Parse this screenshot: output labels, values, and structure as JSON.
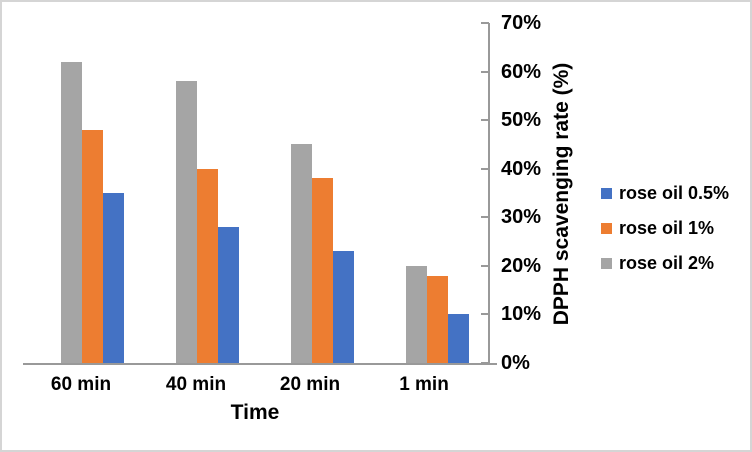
{
  "chart_data": {
    "type": "bar",
    "title": "",
    "xlabel": "Time",
    "ylabel": "DPPH scavenging rate (%)",
    "categories": [
      "60 min",
      "40 min",
      "20 min",
      "1 min"
    ],
    "series": [
      {
        "name": "rose oil 0.5%",
        "color": "#4472c4",
        "values": [
          35,
          28,
          23,
          10
        ]
      },
      {
        "name": "rose oil 1%",
        "color": "#ed7d31",
        "values": [
          48,
          40,
          38,
          18
        ]
      },
      {
        "name": "rose oil 2%",
        "color": "#a5a5a5",
        "values": [
          62,
          58,
          45,
          20
        ]
      }
    ],
    "bar_group_order_left_to_right": [
      "rose oil 2%",
      "rose oil 1%",
      "rose oil 0.5%"
    ],
    "y_axis": {
      "min": 0,
      "max": 70,
      "step": 10,
      "side": "right",
      "tick_labels": [
        "0%",
        "10%",
        "20%",
        "30%",
        "40%",
        "50%",
        "60%",
        "70%"
      ]
    },
    "legend": {
      "position": "right",
      "entries": [
        "rose oil 0.5%",
        "rose oil 1%",
        "rose oil 2%"
      ]
    },
    "grid": false,
    "colors": {
      "axis_line": "#999999",
      "text": "#000000",
      "frame_border": "#d5d5d5"
    }
  }
}
